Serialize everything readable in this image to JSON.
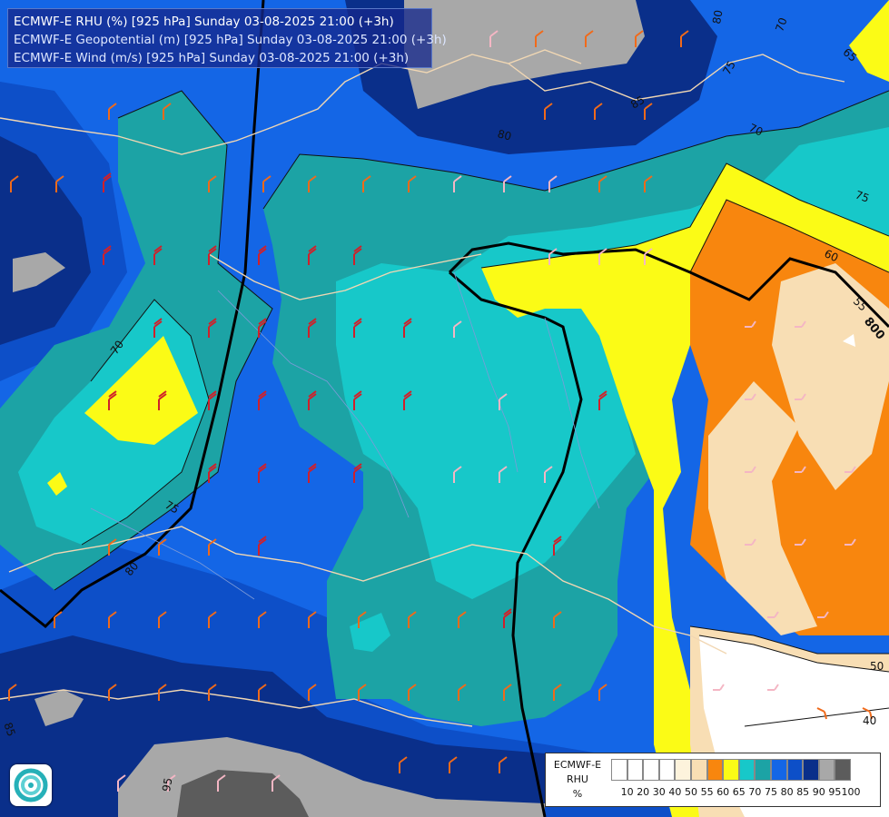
{
  "title": {
    "line1": "ECMWF-E RHU (%) [925 hPa] Sunday 03-08-2025 21:00 (+3h)",
    "line2": "ECMWF-E Geopotential (m) [925 hPa] Sunday 03-08-2025 21:00 (+3h)",
    "line3": "ECMWF-E Wind (m/s) [925 hPa] Sunday 03-08-2025 21:00 (+3h)"
  },
  "legend": {
    "label1": "ECMWF-E",
    "label2": "RHU",
    "label3": "%",
    "swatches": [
      "#ffffff",
      "#ffffff",
      "#ffffff",
      "#ffffff",
      "#fdf3dc",
      "#f8deb4",
      "#f8860e",
      "#fbfb16",
      "#17c8c9",
      "#1ca3a5",
      "#1466e6",
      "#0d4fc8",
      "#0a2f8a",
      "#a8a8a8",
      "#5c5c5c"
    ],
    "ticks": [
      "10",
      "20",
      "30",
      "40",
      "50",
      "55",
      "60",
      "65",
      "70",
      "75",
      "80",
      "85",
      "90",
      "95",
      "100"
    ]
  },
  "contour_labels": [
    {
      "text": "80"
    },
    {
      "text": "70"
    },
    {
      "text": "65"
    },
    {
      "text": "75"
    },
    {
      "text": "80"
    },
    {
      "text": "85"
    },
    {
      "text": "70"
    },
    {
      "text": "75"
    },
    {
      "text": "60"
    },
    {
      "text": "55"
    },
    {
      "text": "800"
    },
    {
      "text": "70"
    },
    {
      "text": "75"
    },
    {
      "text": "80"
    },
    {
      "text": "85"
    },
    {
      "text": "95"
    },
    {
      "text": "50"
    },
    {
      "text": "40"
    }
  ],
  "colors": {
    "rhu_95": "#a8a8a8",
    "rhu_90": "#0a2f8a",
    "rhu_85": "#0d4fc8",
    "rhu_80": "#1466e6",
    "rhu_75": "#1ca3a5",
    "rhu_70": "#17c8c9",
    "rhu_65": "#fbfb16",
    "rhu_60": "#f8860e",
    "rhu_55": "#f8deb4",
    "rhu_50": "#ffffff"
  }
}
